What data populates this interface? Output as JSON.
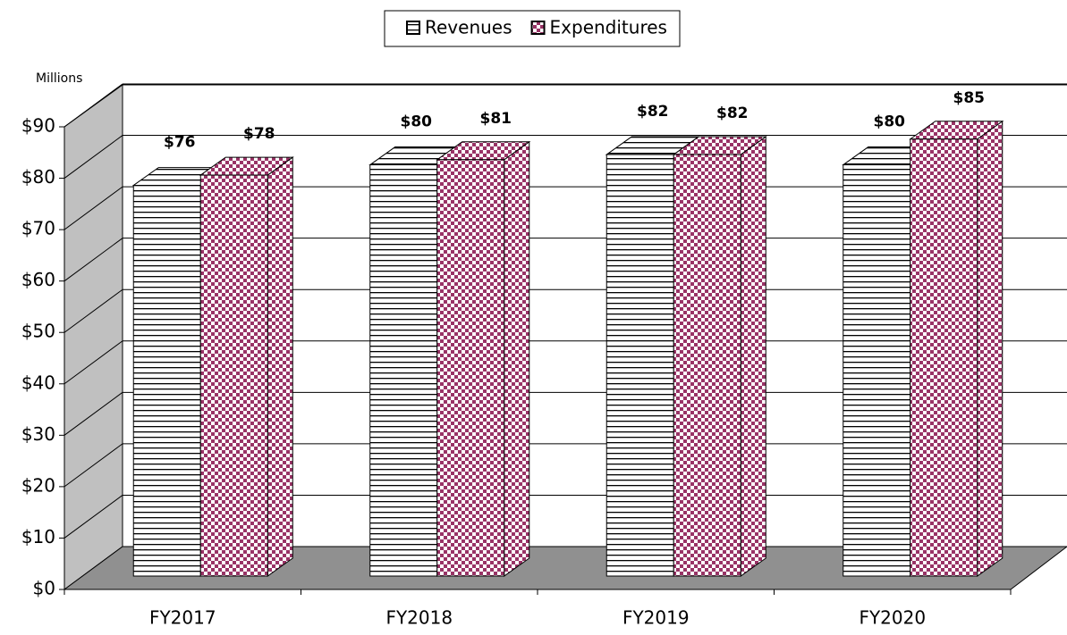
{
  "chart_data": {
    "type": "bar3d",
    "axis_label": "Millions",
    "categories": [
      "FY2017",
      "FY2018",
      "FY2019",
      "FY2020"
    ],
    "series": [
      {
        "name": "Revenues",
        "color": "#000000",
        "values": [
          76,
          80,
          82,
          80
        ],
        "value_labels": [
          "$76",
          "$80",
          "$82",
          "$80"
        ]
      },
      {
        "name": "Expenditures",
        "color": "#993366",
        "values": [
          78,
          81,
          82,
          85
        ],
        "value_labels": [
          "$78",
          "$81",
          "$82",
          "$85"
        ]
      }
    ],
    "ylim": [
      0,
      90
    ],
    "yticks": [
      {
        "value": 0,
        "label": "$0"
      },
      {
        "value": 10,
        "label": "$10"
      },
      {
        "value": 20,
        "label": "$20"
      },
      {
        "value": 30,
        "label": "$30"
      },
      {
        "value": 40,
        "label": "$40"
      },
      {
        "value": 50,
        "label": "$50"
      },
      {
        "value": 60,
        "label": "$60"
      },
      {
        "value": 70,
        "label": "$70"
      },
      {
        "value": 80,
        "label": "$80"
      },
      {
        "value": 90,
        "label": "$90"
      }
    ],
    "grid": true,
    "legend": "top"
  }
}
